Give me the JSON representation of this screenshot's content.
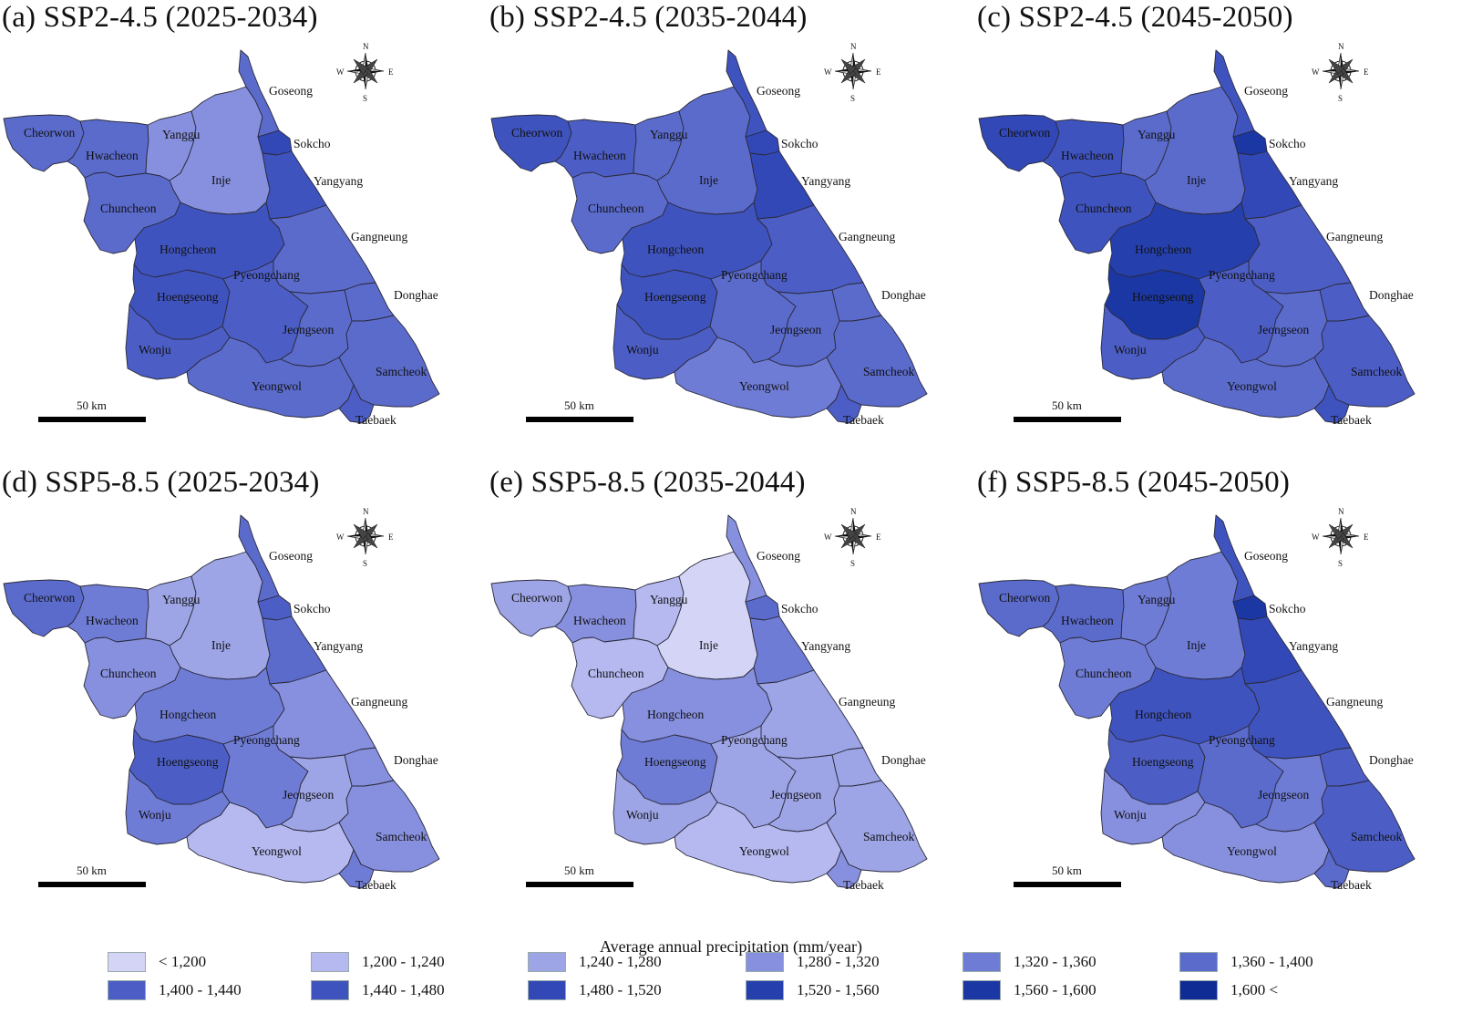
{
  "legend": {
    "title": "Average annual precipitation (mm/year)",
    "classes": [
      {
        "label": "< 1,200",
        "color": "#d4d4f7"
      },
      {
        "label": "1,200 - 1,240",
        "color": "#b5b9ef"
      },
      {
        "label": "1,240 - 1,280",
        "color": "#9ea5e6"
      },
      {
        "label": "1,280 - 1,320",
        "color": "#8790de"
      },
      {
        "label": "1,320 - 1,360",
        "color": "#6f7cd5"
      },
      {
        "label": "1,360 - 1,400",
        "color": "#5b6bcc"
      },
      {
        "label": "1,400 - 1,440",
        "color": "#4c5ec5"
      },
      {
        "label": "1,440 - 1,480",
        "color": "#3f53be"
      },
      {
        "label": "1,480 - 1,520",
        "color": "#3248b6"
      },
      {
        "label": "1,520 - 1,560",
        "color": "#2540ad"
      },
      {
        "label": "1,560 - 1,600",
        "color": "#1a37a3"
      },
      {
        "label": "1,600 <",
        "color": "#0e2c93"
      }
    ]
  },
  "compass": {
    "n": "N",
    "s": "S",
    "e": "E",
    "w": "W"
  },
  "scale_bar": {
    "label": "50 km"
  },
  "regions": [
    "Cheorwon",
    "Hwacheon",
    "Yanggu",
    "Inje",
    "Goseong",
    "Sokcho",
    "Yangyang",
    "Chuncheon",
    "Hongcheon",
    "Gangneung",
    "Hoengseong",
    "Pyeongchang",
    "Donghae",
    "Wonju",
    "Jeongseon",
    "Samcheok",
    "Yeongwol",
    "Taebaek"
  ],
  "panels": [
    {
      "title": "(a) SSP2-4.5 (2025-2034)",
      "classes": {
        "Cheorwon": 5,
        "Hwacheon": 5,
        "Yanggu": 3,
        "Inje": 3,
        "Goseong": 5,
        "Sokcho": 8,
        "Yangyang": 7,
        "Chuncheon": 5,
        "Hongcheon": 7,
        "Gangneung": 5,
        "Hoengseong": 7,
        "Pyeongchang": 6,
        "Donghae": 5,
        "Wonju": 6,
        "Jeongseon": 5,
        "Samcheok": 5,
        "Yeongwol": 5,
        "Taebaek": 6
      }
    },
    {
      "title": "(b) SSP2-4.5 (2035-2044)",
      "classes": {
        "Cheorwon": 7,
        "Hwacheon": 6,
        "Yanggu": 5,
        "Inje": 5,
        "Goseong": 7,
        "Sokcho": 8,
        "Yangyang": 8,
        "Chuncheon": 5,
        "Hongcheon": 7,
        "Gangneung": 6,
        "Hoengseong": 7,
        "Pyeongchang": 5,
        "Donghae": 5,
        "Wonju": 6,
        "Jeongseon": 5,
        "Samcheok": 5,
        "Yeongwol": 4,
        "Taebaek": 6
      }
    },
    {
      "title": "(c) SSP2-4.5 (2045-2050)",
      "classes": {
        "Cheorwon": 8,
        "Hwacheon": 7,
        "Yanggu": 5,
        "Inje": 5,
        "Goseong": 7,
        "Sokcho": 10,
        "Yangyang": 8,
        "Chuncheon": 7,
        "Hongcheon": 9,
        "Gangneung": 6,
        "Hoengseong": 10,
        "Pyeongchang": 6,
        "Donghae": 6,
        "Wonju": 6,
        "Jeongseon": 5,
        "Samcheok": 6,
        "Yeongwol": 5,
        "Taebaek": 7
      }
    },
    {
      "title": "(d) SSP5-8.5 (2025-2034)",
      "classes": {
        "Cheorwon": 5,
        "Hwacheon": 4,
        "Yanggu": 2,
        "Inje": 2,
        "Goseong": 5,
        "Sokcho": 6,
        "Yangyang": 5,
        "Chuncheon": 3,
        "Hongcheon": 4,
        "Gangneung": 3,
        "Hoengseong": 6,
        "Pyeongchang": 4,
        "Donghae": 3,
        "Wonju": 4,
        "Jeongseon": 2,
        "Samcheok": 3,
        "Yeongwol": 1,
        "Taebaek": 4
      }
    },
    {
      "title": "(e) SSP5-8.5 (2035-2044)",
      "classes": {
        "Cheorwon": 2,
        "Hwacheon": 3,
        "Yanggu": 1,
        "Inje": 0,
        "Goseong": 3,
        "Sokcho": 5,
        "Yangyang": 4,
        "Chuncheon": 1,
        "Hongcheon": 3,
        "Gangneung": 2,
        "Hoengseong": 4,
        "Pyeongchang": 2,
        "Donghae": 2,
        "Wonju": 2,
        "Jeongseon": 2,
        "Samcheok": 2,
        "Yeongwol": 1,
        "Taebaek": 3
      }
    },
    {
      "title": "(f) SSP5-8.5 (2045-2050)",
      "classes": {
        "Cheorwon": 5,
        "Hwacheon": 5,
        "Yanggu": 4,
        "Inje": 4,
        "Goseong": 7,
        "Sokcho": 10,
        "Yangyang": 8,
        "Chuncheon": 4,
        "Hongcheon": 7,
        "Gangneung": 7,
        "Hoengseong": 6,
        "Pyeongchang": 5,
        "Donghae": 6,
        "Wonju": 3,
        "Jeongseon": 4,
        "Samcheok": 6,
        "Yeongwol": 3,
        "Taebaek": 5
      }
    }
  ]
}
